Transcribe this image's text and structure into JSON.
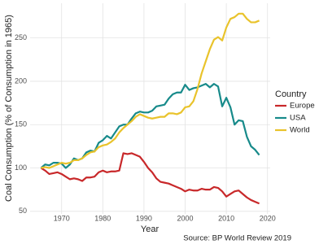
{
  "chart_data": {
    "type": "line",
    "xlabel": "Year",
    "ylabel": "Coal Consumption (% of Consumption in 1965)",
    "caption": "Source: BP World Review 2019",
    "legend_title": "Country",
    "legend_position": "right",
    "grid": true,
    "x": [
      1965,
      1966,
      1967,
      1968,
      1969,
      1970,
      1971,
      1972,
      1973,
      1974,
      1975,
      1976,
      1977,
      1978,
      1979,
      1980,
      1981,
      1982,
      1983,
      1984,
      1985,
      1986,
      1987,
      1988,
      1989,
      1990,
      1991,
      1992,
      1993,
      1994,
      1995,
      1996,
      1997,
      1998,
      1999,
      2000,
      2001,
      2002,
      2003,
      2004,
      2005,
      2006,
      2007,
      2008,
      2009,
      2010,
      2011,
      2012,
      2013,
      2014,
      2015,
      2016,
      2017,
      2018
    ],
    "xlim": [
      1962.35,
      2020.65
    ],
    "xticks": [
      1970,
      1980,
      1990,
      2000,
      2010,
      2020
    ],
    "ylim": [
      47,
      290
    ],
    "yticks": [
      50,
      100,
      150,
      200,
      250
    ],
    "series": [
      {
        "name": "Europe",
        "color": "#c8282a",
        "values": [
          100,
          97,
          93,
          94,
          95,
          93,
          90,
          87,
          88,
          87,
          85,
          89,
          89,
          90,
          95,
          97,
          95,
          96,
          96,
          97,
          117,
          116,
          117,
          115,
          113,
          107,
          100,
          95,
          88,
          84,
          83,
          82,
          80,
          78,
          76,
          73,
          75,
          74,
          74,
          76,
          75,
          75,
          78,
          77,
          73,
          67,
          70,
          73,
          74,
          70,
          66,
          63,
          61,
          59
        ]
      },
      {
        "name": "USA",
        "color": "#178a8a",
        "values": [
          100,
          104,
          103,
          106,
          106,
          105,
          100,
          104,
          111,
          109,
          111,
          118,
          120,
          119,
          129,
          132,
          137,
          134,
          141,
          148,
          150,
          150,
          157,
          163,
          165,
          164,
          164,
          166,
          171,
          172,
          173,
          180,
          185,
          187,
          187,
          196,
          190,
          192,
          193,
          195,
          197,
          193,
          197,
          194,
          171,
          181,
          170,
          150,
          155,
          154,
          136,
          125,
          121,
          115
        ]
      },
      {
        "name": "World",
        "color": "#e9c32b",
        "values": [
          100,
          101,
          100,
          102,
          104,
          106,
          105,
          106,
          109,
          109,
          111,
          115,
          118,
          119,
          124,
          126,
          127,
          130,
          134,
          141,
          146,
          150,
          154,
          159,
          162,
          160,
          158,
          157,
          158,
          159,
          159,
          163,
          163,
          162,
          164,
          170,
          171,
          177,
          191,
          209,
          223,
          237,
          248,
          251,
          247,
          262,
          272,
          274,
          278,
          278,
          272,
          268,
          268,
          270
        ]
      }
    ]
  }
}
